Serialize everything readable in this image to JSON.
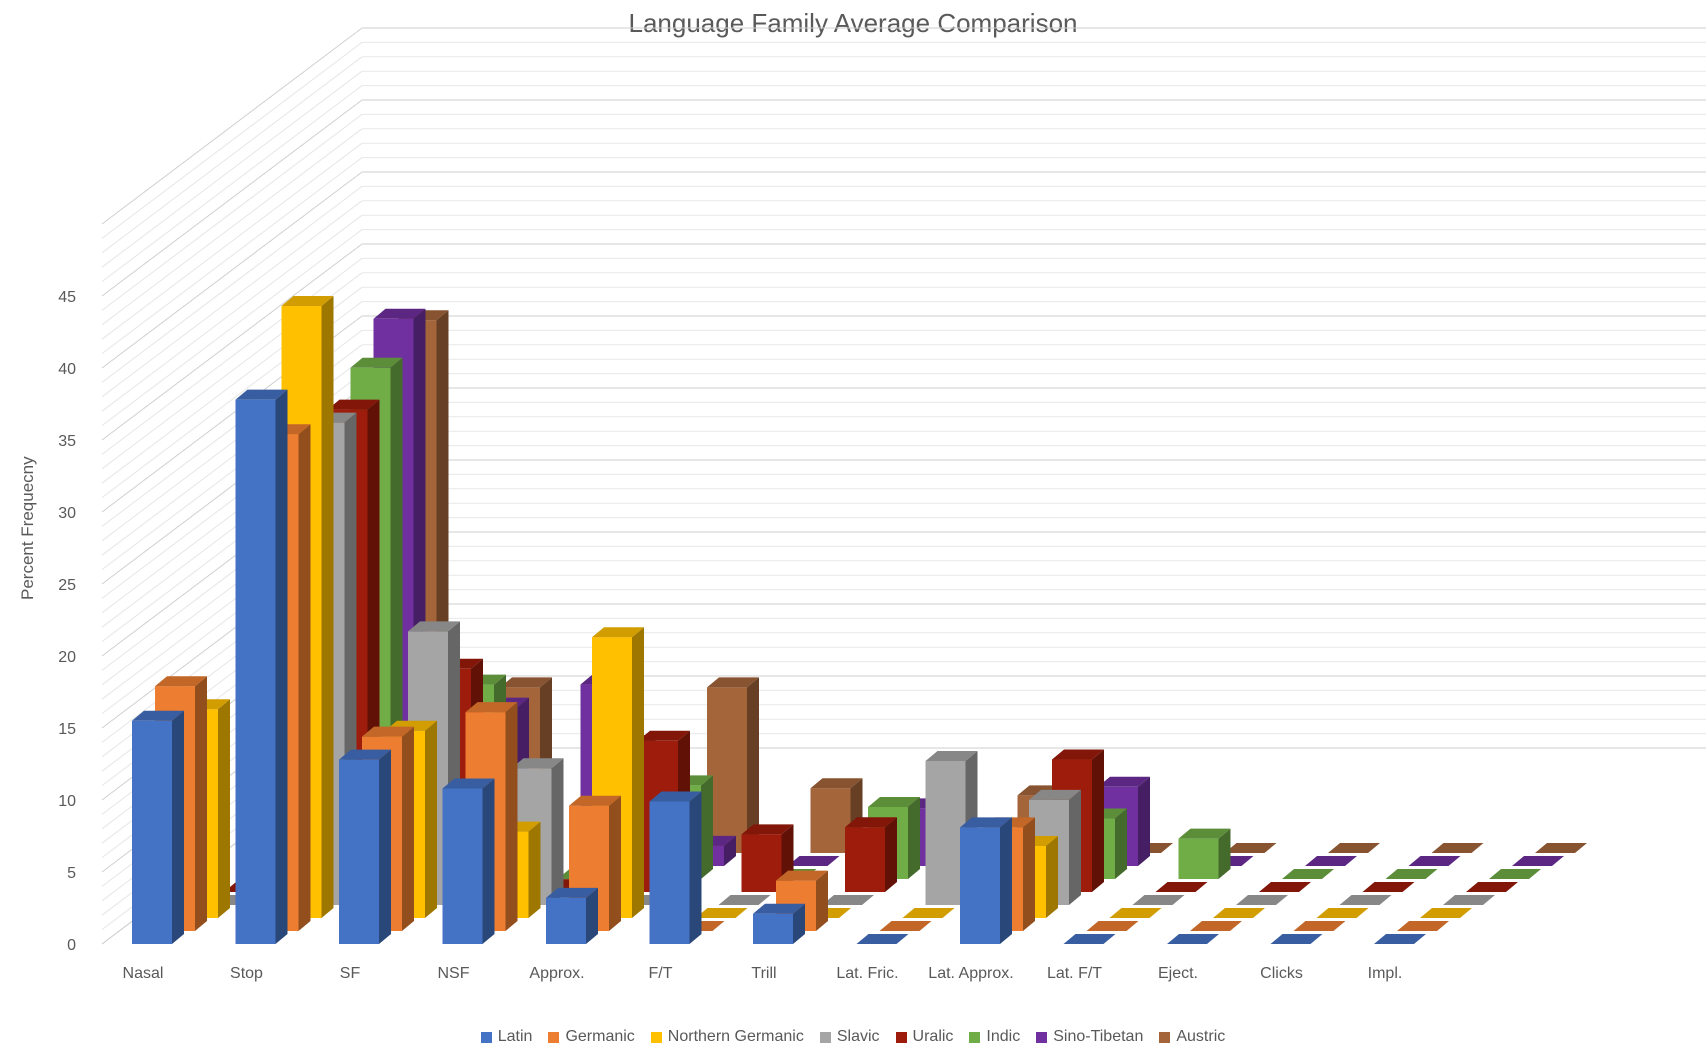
{
  "chart_data": {
    "type": "bar",
    "subtype": "3d-column",
    "title": "Language Family Average Comparison",
    "ylabel": "Percent Frequecny",
    "xlabel": "",
    "ylim": [
      0,
      50
    ],
    "y_ticks": [
      0,
      5,
      10,
      15,
      20,
      25,
      30,
      35,
      40,
      45
    ],
    "grid": true,
    "legend_position": "bottom",
    "categories": [
      "Nasal",
      "Stop",
      "SF",
      "NSF",
      "Approx.",
      "F/T",
      "Trill",
      "Lat. Fric.",
      "Lat. Approx.",
      "Lat. F/T",
      "Eject.",
      "Clicks",
      "Impl."
    ],
    "series": [
      {
        "name": "Latin",
        "color": "#4472C4",
        "values": [
          15.5,
          37.8,
          12.8,
          10.8,
          3.2,
          9.9,
          2.1,
          0,
          8.1,
          0,
          0,
          0,
          0
        ]
      },
      {
        "name": "Germanic",
        "color": "#ED7D31",
        "values": [
          17,
          34.5,
          13.5,
          15.2,
          8.7,
          0,
          3.5,
          0,
          7.2,
          0,
          0,
          0,
          0
        ]
      },
      {
        "name": "Northern Germanic",
        "color": "#FFC000",
        "values": [
          14.5,
          42.5,
          13,
          6,
          19.5,
          0,
          0,
          0,
          5,
          0,
          0,
          0,
          0
        ]
      },
      {
        "name": "Slavic",
        "color": "#A5A5A5",
        "values": [
          0,
          33.5,
          19,
          9.5,
          0,
          0,
          0,
          10,
          7.3,
          0,
          0,
          0,
          0
        ]
      },
      {
        "name": "Uralic",
        "color": "#9E1C0B",
        "values": [
          0,
          33.5,
          15.5,
          0.2,
          10.5,
          4,
          4.5,
          0,
          9.2,
          0,
          0,
          0,
          0
        ]
      },
      {
        "name": "Indic",
        "color": "#70AD47",
        "values": [
          0,
          35.5,
          13.5,
          0,
          6.5,
          0,
          5,
          0,
          4.2,
          2.8,
          0,
          0,
          0
        ]
      },
      {
        "name": "Sino-Tibetan",
        "color": "#7030A0",
        "values": [
          0,
          38,
          11,
          12.6,
          1.4,
          0,
          4,
          0,
          5.5,
          0,
          0,
          0,
          0
        ]
      },
      {
        "name": "Austric",
        "color": "#A5653A",
        "values": [
          0,
          37,
          11.5,
          7.5,
          11.5,
          4.5,
          0,
          4,
          0,
          0,
          0,
          0,
          0
        ]
      }
    ]
  }
}
